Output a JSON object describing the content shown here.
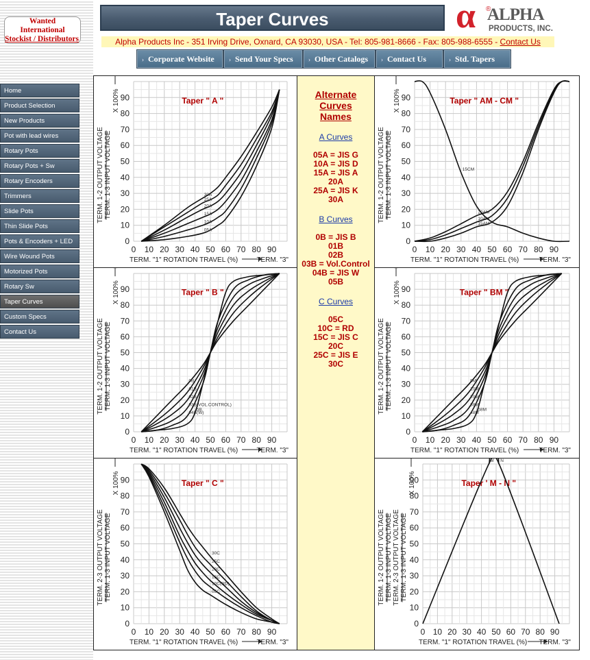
{
  "banner": {
    "line1": "Wanted",
    "line2": "International",
    "line3": "Stockist / Distributors"
  },
  "page_title": "Taper Curves",
  "logo": {
    "glyph": "α",
    "reg": "®",
    "brand": "ALPHA",
    "sub": "PRODUCTS, INC."
  },
  "address": {
    "text": "Alpha Products Inc - 351 Irving Drive, Oxnard, CA 93030, USA - Tel: 805-981-8666 - Fax: 805-988-6555 - ",
    "contact_link": "Contact Us"
  },
  "top_nav": [
    "Corporate Website",
    "Send Your Specs",
    "Other Catalogs",
    "Contact Us",
    "Std. Tapers"
  ],
  "sidebar": [
    "Home",
    "Product Selection",
    "New Products",
    "Pot with lead wires",
    "Rotary Pots",
    "Rotary Pots + Sw",
    "Rotary Encoders",
    "Trimmers",
    "Slide Pots",
    "Thin Slide Pots",
    "Pots & Encoders + LED",
    "Wire Wound Pots",
    "Motorized Pots",
    "Rotary Sw",
    "Taper Curves",
    "Custom Specs",
    "Contact Us"
  ],
  "sidebar_active": "Taper Curves",
  "alt_names": {
    "heading": [
      "Alternate",
      "Curves",
      "Names"
    ],
    "a_title": "A Curves",
    "a_lines": [
      "05A = JIS G",
      "10A = JIS D",
      "15A = JIS A",
      "20A",
      "25A = JIS K",
      "30A"
    ],
    "b_title": "B Curves",
    "b_lines": [
      "0B = JIS B",
      "01B",
      "02B",
      "03B = Vol.Control",
      "04B = JIS W",
      "05B"
    ],
    "c_title": "C Curves",
    "c_lines": [
      "05C",
      "10C = RD",
      "15C = JIS C",
      "20C",
      "25C = JIS E",
      "30C"
    ]
  },
  "chart_data": [
    {
      "type": "line",
      "title": "Taper \" A \"",
      "xlabel": "TERM. \"1\"   ROTATION TRAVEL (%)",
      "xlabel_right": "TERM. \"3\"",
      "ylabel": [
        "TERM. 1-2 OUTPUT VOLTAGE",
        "TERM. 1-3 INPUT VOLTAGE"
      ],
      "ylabel_mult": "X 100%",
      "xlim": [
        0,
        100
      ],
      "ylim": [
        0,
        100
      ],
      "ticks": [
        0,
        10,
        20,
        30,
        40,
        50,
        60,
        70,
        80,
        90
      ],
      "grid": true,
      "series": [
        {
          "name": "05A",
          "x": [
            5,
            20,
            35,
            45,
            50,
            55,
            60,
            70,
            80,
            90,
            95
          ],
          "y": [
            0,
            1,
            3,
            5,
            7,
            10,
            14,
            28,
            47,
            71,
            95
          ]
        },
        {
          "name": "10A",
          "x": [
            5,
            20,
            35,
            45,
            50,
            55,
            60,
            70,
            80,
            90,
            95
          ],
          "y": [
            0,
            3,
            7,
            10,
            12,
            15,
            19,
            33,
            52,
            74,
            95
          ]
        },
        {
          "name": "15A",
          "x": [
            5,
            20,
            35,
            45,
            50,
            55,
            60,
            70,
            80,
            90,
            95
          ],
          "y": [
            0,
            5,
            11,
            15,
            17,
            20,
            25,
            38,
            56,
            76,
            95
          ]
        },
        {
          "name": "20A",
          "x": [
            5,
            20,
            35,
            45,
            50,
            55,
            60,
            70,
            80,
            90,
            95
          ],
          "y": [
            0,
            7,
            15,
            20,
            22,
            25,
            30,
            43,
            60,
            79,
            95
          ]
        },
        {
          "name": "25A",
          "x": [
            5,
            20,
            35,
            45,
            50,
            55,
            60,
            70,
            80,
            90,
            95
          ],
          "y": [
            0,
            9,
            18,
            24,
            26,
            29,
            35,
            48,
            64,
            81,
            95
          ]
        },
        {
          "name": "30A",
          "x": [
            5,
            20,
            35,
            45,
            50,
            55,
            60,
            70,
            80,
            90,
            95
          ],
          "y": [
            0,
            10,
            21,
            27,
            30,
            34,
            40,
            53,
            68,
            84,
            95
          ]
        }
      ]
    },
    {
      "type": "line",
      "title": "Taper \" AM - CM \"",
      "xlabel": "TERM. \"1\"   ROTATION TRAVEL (%)",
      "xlabel_right": "TERM. \"3\"",
      "ylabel": [
        "TERM. 1-2 OUTPUT VOLTAGE",
        "TERM. 1-3 INPUT VOLTAGE"
      ],
      "ylabel_mult": "X 100%",
      "xlim": [
        0,
        100
      ],
      "ylim": [
        0,
        100
      ],
      "ticks": [
        0,
        10,
        20,
        30,
        40,
        50,
        60,
        70,
        80,
        90
      ],
      "grid": true,
      "series": [
        {
          "name": "20AM",
          "x": [
            0,
            10,
            20,
            30,
            40,
            50,
            60,
            70,
            80,
            90,
            95,
            100
          ],
          "y": [
            0,
            2,
            6,
            11,
            16,
            20,
            31,
            50,
            74,
            95,
            100,
            100
          ]
        },
        {
          "name": "10AM",
          "x": [
            0,
            10,
            20,
            30,
            40,
            50,
            60,
            70,
            80,
            90,
            95,
            100
          ],
          "y": [
            0,
            1,
            4,
            8,
            12,
            16,
            27,
            47,
            72,
            94,
            100,
            100
          ]
        },
        {
          "name": "15AM",
          "x": [
            0,
            10,
            20,
            30,
            40,
            50,
            60,
            70,
            80,
            90,
            95,
            100
          ],
          "y": [
            0,
            0,
            2,
            5,
            9,
            12,
            22,
            43,
            70,
            93,
            100,
            100
          ]
        },
        {
          "name": "15CM",
          "x": [
            0,
            5,
            10,
            20,
            30,
            40,
            50,
            60,
            70,
            80,
            90,
            100
          ],
          "y": [
            100,
            100,
            93,
            70,
            43,
            22,
            12,
            9,
            5,
            2,
            0,
            0
          ]
        }
      ]
    },
    {
      "type": "line",
      "title": "Taper \" B \"",
      "xlabel": "TERM. \"1\"   ROTATION TRAVEL (%)",
      "xlabel_right": "TERM. \"3\"",
      "ylabel": [
        "TERM. 1-2 OUTPUT VOLTAGE",
        "TERM. 1-3 INPUT VOLTAGE"
      ],
      "ylabel_mult": "X 100%",
      "xlim": [
        0,
        100
      ],
      "ylim": [
        0,
        100
      ],
      "ticks": [
        0,
        10,
        20,
        30,
        40,
        50,
        60,
        70,
        80,
        90
      ],
      "grid": true,
      "series": [
        {
          "name": "0B",
          "x": [
            5,
            15,
            25,
            35,
            45,
            50,
            55,
            65,
            75,
            85,
            95
          ],
          "y": [
            0,
            10,
            20,
            30,
            42,
            50,
            58,
            70,
            80,
            90,
            100
          ]
        },
        {
          "name": "01B",
          "x": [
            5,
            15,
            25,
            35,
            45,
            50,
            55,
            65,
            75,
            85,
            95
          ],
          "y": [
            0,
            7,
            15,
            25,
            40,
            50,
            60,
            75,
            85,
            93,
            100
          ]
        },
        {
          "name": "02B",
          "x": [
            5,
            15,
            25,
            35,
            45,
            50,
            55,
            65,
            75,
            85,
            95
          ],
          "y": [
            0,
            5,
            11,
            20,
            37,
            50,
            63,
            80,
            89,
            95,
            100
          ]
        },
        {
          "name": "03B(VOL.CONTROL)",
          "x": [
            5,
            15,
            25,
            35,
            45,
            50,
            55,
            65,
            75,
            85,
            95
          ],
          "y": [
            0,
            3,
            7,
            15,
            34,
            50,
            66,
            85,
            93,
            97,
            100
          ]
        },
        {
          "name": "04B(W)",
          "x": [
            5,
            15,
            25,
            35,
            45,
            50,
            55,
            65,
            75,
            85,
            95
          ],
          "y": [
            0,
            1,
            4,
            10,
            30,
            50,
            70,
            90,
            96,
            99,
            100
          ]
        },
        {
          "name": "5B",
          "x": [
            5,
            15,
            25,
            35,
            40,
            45,
            50,
            55,
            60,
            65,
            75,
            85,
            95
          ],
          "y": [
            0,
            1,
            2,
            5,
            12,
            30,
            50,
            70,
            88,
            95,
            98,
            99,
            100
          ]
        }
      ]
    },
    {
      "type": "line",
      "title": "Taper \" BM \"",
      "xlabel": "TERM. \"1\"   ROTATION TRAVEL (%)",
      "xlabel_right": "TERM. \"3\"",
      "ylabel": [
        "TERM. 1-2 OUTPUT VOLTAGE",
        "TERM. 1-3 INPUT VOLTAGE"
      ],
      "ylabel_mult": "X 100%",
      "xlim": [
        0,
        100
      ],
      "ylim": [
        0,
        100
      ],
      "ticks": [
        0,
        10,
        20,
        30,
        40,
        50,
        60,
        70,
        80,
        90
      ],
      "grid": true,
      "series": [
        {
          "name": "8M",
          "x": [
            5,
            15,
            25,
            35,
            45,
            50,
            55,
            65,
            75,
            85,
            95
          ],
          "y": [
            0,
            10,
            20,
            30,
            42,
            50,
            58,
            70,
            80,
            90,
            100
          ]
        },
        {
          "name": "10M",
          "x": [
            5,
            15,
            25,
            35,
            45,
            50,
            55,
            65,
            75,
            85,
            95
          ],
          "y": [
            0,
            7,
            15,
            25,
            40,
            50,
            60,
            75,
            85,
            93,
            100
          ]
        },
        {
          "name": "20M",
          "x": [
            5,
            15,
            25,
            35,
            45,
            50,
            55,
            65,
            75,
            85,
            95
          ],
          "y": [
            0,
            5,
            11,
            20,
            37,
            50,
            63,
            80,
            89,
            95,
            100
          ]
        },
        {
          "name": "38M",
          "x": [
            5,
            15,
            25,
            35,
            45,
            50,
            55,
            65,
            75,
            85,
            95
          ],
          "y": [
            0,
            3,
            7,
            15,
            34,
            50,
            66,
            85,
            93,
            97,
            100
          ]
        },
        {
          "name": "48M",
          "x": [
            5,
            15,
            25,
            35,
            45,
            50,
            55,
            65,
            75,
            85,
            95
          ],
          "y": [
            0,
            1,
            4,
            10,
            30,
            50,
            70,
            90,
            96,
            99,
            100
          ]
        },
        {
          "name": "58M",
          "x": [
            5,
            15,
            25,
            35,
            40,
            45,
            50,
            55,
            60,
            65,
            75,
            85,
            95
          ],
          "y": [
            0,
            1,
            2,
            5,
            12,
            30,
            50,
            70,
            88,
            95,
            98,
            99,
            100
          ]
        }
      ]
    },
    {
      "type": "line",
      "title": "Taper \" C \"",
      "xlabel": "TERM. \"1\"   ROTATION TRAVEL (%)",
      "xlabel_right": "TERM. \"3\"",
      "ylabel": [
        "TERM. 2-3 OUTPUT VOLTAGE",
        "TERM. 1-3 INPUT VOLTAGE"
      ],
      "ylabel_mult": "X 100%",
      "xlim": [
        0,
        100
      ],
      "ylim": [
        0,
        100
      ],
      "ticks": [
        0,
        10,
        20,
        30,
        40,
        50,
        60,
        70,
        80,
        90
      ],
      "grid": true,
      "series": [
        {
          "name": "05C",
          "x": [
            5,
            10,
            20,
            30,
            35,
            40,
            45,
            50,
            60,
            70,
            80,
            90,
            95
          ],
          "y": [
            100,
            92,
            70,
            46,
            34,
            26,
            21,
            18,
            12,
            7,
            3,
            1,
            0
          ]
        },
        {
          "name": "10C(RD)",
          "x": [
            5,
            10,
            20,
            30,
            35,
            40,
            45,
            50,
            60,
            70,
            80,
            90,
            95
          ],
          "y": [
            100,
            93,
            73,
            51,
            41,
            33,
            27,
            23,
            16,
            10,
            5,
            1,
            0
          ]
        },
        {
          "name": "15C",
          "x": [
            5,
            10,
            20,
            30,
            35,
            40,
            45,
            50,
            60,
            70,
            80,
            90,
            95
          ],
          "y": [
            100,
            94,
            76,
            55,
            46,
            38,
            32,
            27,
            19,
            12,
            6,
            2,
            0
          ]
        },
        {
          "name": "20C",
          "x": [
            5,
            10,
            20,
            30,
            35,
            40,
            45,
            50,
            60,
            70,
            80,
            90,
            95
          ],
          "y": [
            100,
            95,
            79,
            60,
            51,
            43,
            37,
            32,
            23,
            14,
            7,
            2,
            0
          ]
        },
        {
          "name": "25C",
          "x": [
            5,
            10,
            20,
            30,
            35,
            40,
            45,
            50,
            60,
            70,
            80,
            90,
            95
          ],
          "y": [
            100,
            96,
            82,
            65,
            56,
            48,
            42,
            37,
            27,
            17,
            8,
            2,
            0
          ]
        },
        {
          "name": "30C",
          "x": [
            5,
            10,
            20,
            30,
            35,
            40,
            45,
            50,
            60,
            70,
            80,
            90,
            95
          ],
          "y": [
            100,
            97,
            85,
            69,
            61,
            54,
            48,
            42,
            31,
            20,
            10,
            3,
            0
          ]
        }
      ]
    },
    {
      "type": "line",
      "title": "Taper ' M - N \"",
      "xlabel": "TERM. \"1\"   ROTATION TRAVEL (%)",
      "xlabel_right": "TERM. \"3\"",
      "ylabel": [
        "TERM. 1-2 OUTPUT VOLTAGE",
        "TERM. 1-3 INPUT VOLTAGE",
        "TERM. 2-3 OUTPUT VOLTAGE",
        "TERM. 1-3 INPUT VOLTAGE"
      ],
      "ylabel_mult": "X 100%",
      "xlim": [
        0,
        100
      ],
      "ylim": [
        0,
        100
      ],
      "ticks": [
        0,
        10,
        20,
        30,
        40,
        50,
        60,
        70,
        80,
        90
      ],
      "grid": true,
      "series": [
        {
          "name": "M",
          "x": [
            0,
            45,
            52
          ],
          "y": [
            0,
            100,
            100
          ]
        },
        {
          "name": "N",
          "x": [
            45,
            52,
            93
          ],
          "y": [
            100,
            100,
            0
          ]
        }
      ]
    }
  ]
}
